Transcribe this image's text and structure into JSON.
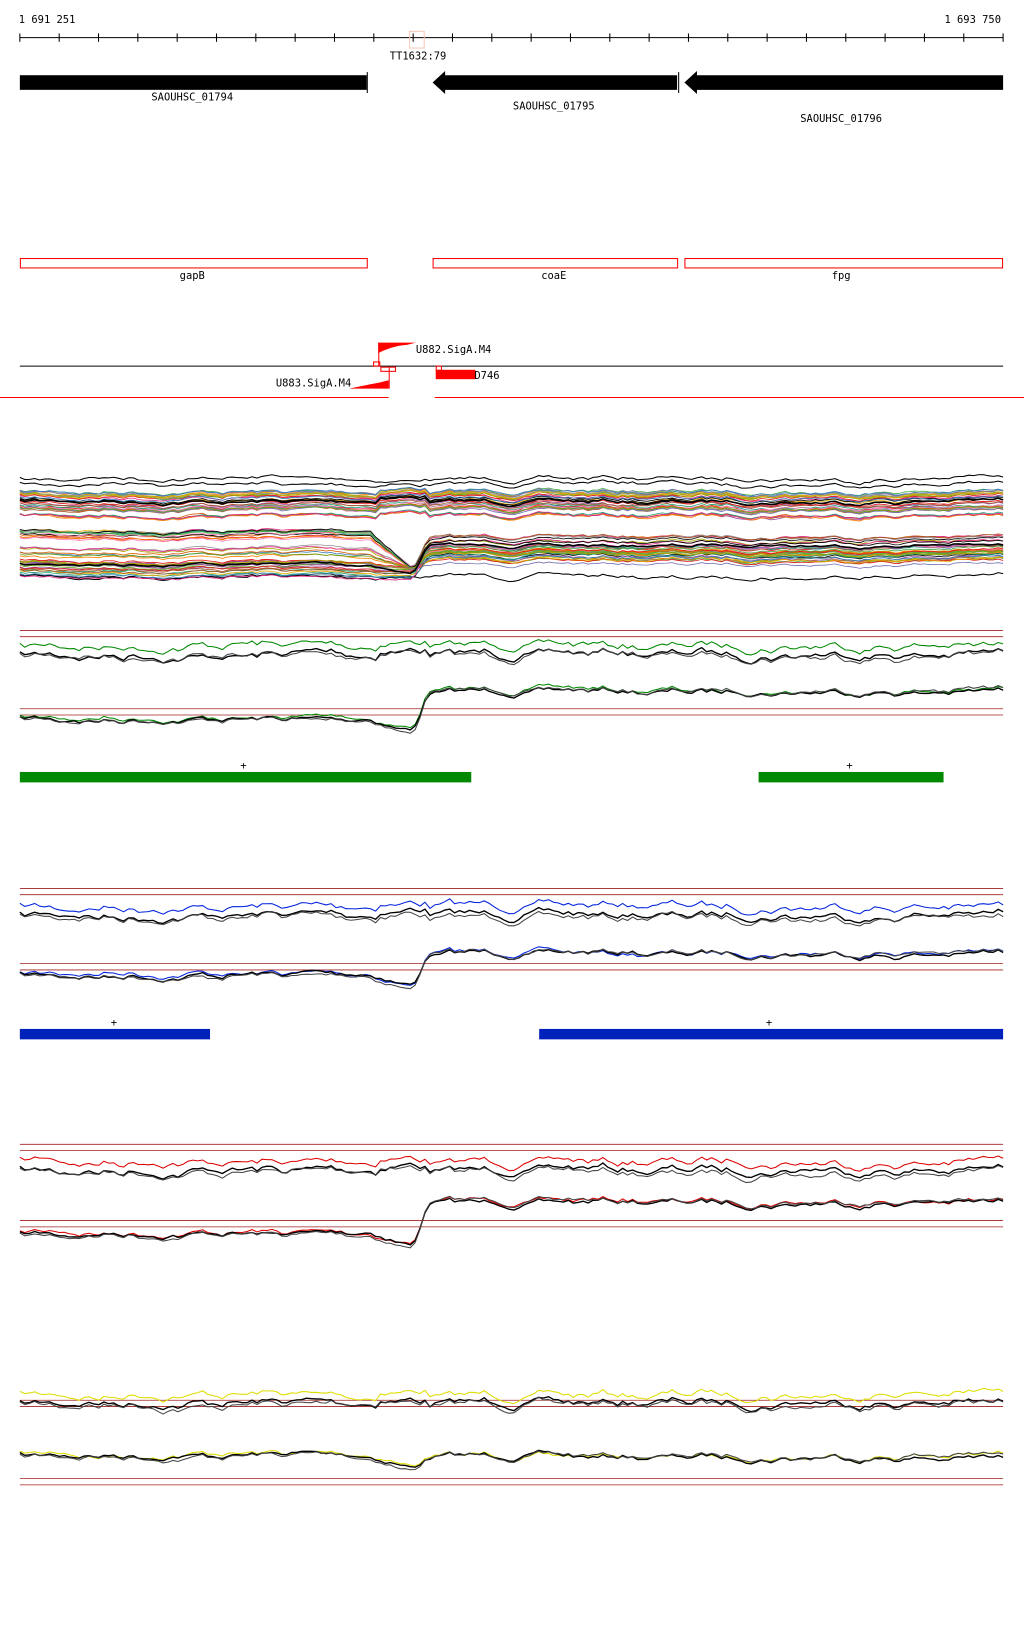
{
  "ruler": {
    "start_label": "1 691 251",
    "end_label": "1 693 750",
    "marker_label": "TT1632:79"
  },
  "genes": [
    {
      "name": "SAOUHSC_01794",
      "strand": "+"
    },
    {
      "name": "SAOUHSC_01795",
      "strand": "-"
    },
    {
      "name": "SAOUHSC_01796",
      "strand": "-"
    }
  ],
  "gene_names": [
    "gapB",
    "coaE",
    "fpg"
  ],
  "promoters": [
    {
      "label": "U882.SigA.M4"
    },
    {
      "label": "U883.SigA.M4"
    },
    {
      "label": "D746"
    }
  ],
  "segments": {
    "green": {
      "color": "#008800",
      "labels": [
        "+",
        "+"
      ]
    },
    "blue": {
      "color": "#0022bb",
      "labels": [
        "+",
        "+"
      ]
    }
  },
  "colors": {
    "feature_red": "#ff0000",
    "threshold": "#a02020",
    "green": "#008800",
    "blue": "#0022dd",
    "red": "#dd0000",
    "yellow": "#dddd00"
  }
}
